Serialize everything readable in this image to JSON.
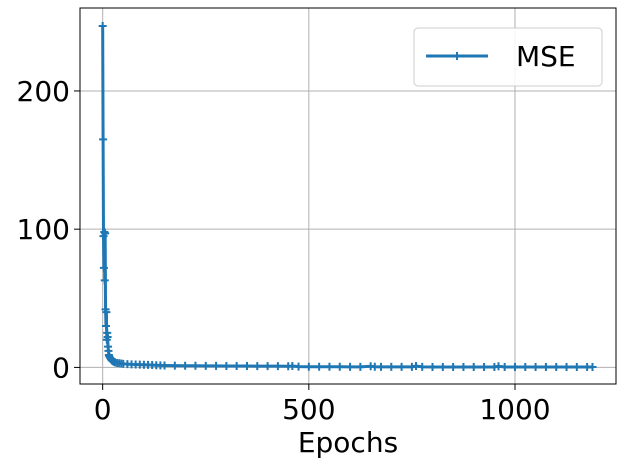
{
  "chart_data": {
    "type": "line",
    "title": "",
    "xlabel": "Epochs",
    "ylabel": "",
    "xlim": [
      -55,
      1245
    ],
    "ylim": [
      -12,
      260
    ],
    "xticks": [
      0,
      500,
      1000
    ],
    "yticks": [
      0,
      100,
      200
    ],
    "grid": true,
    "legend_position": "top-right",
    "series": [
      {
        "name": "MSE",
        "color": "#1f77b4",
        "marker": "plus",
        "x": [
          0,
          1,
          2,
          3,
          4,
          5,
          6,
          7,
          8,
          9,
          10,
          11,
          12,
          13,
          14,
          15,
          16,
          18,
          20,
          22,
          25,
          28,
          30,
          35,
          40,
          45,
          50,
          60,
          70,
          80,
          90,
          100,
          110,
          120,
          130,
          140,
          150,
          175,
          200,
          225,
          250,
          275,
          300,
          325,
          350,
          375,
          400,
          425,
          450,
          460,
          475,
          500,
          525,
          550,
          575,
          600,
          625,
          650,
          660,
          675,
          700,
          725,
          750,
          760,
          775,
          800,
          825,
          850,
          875,
          900,
          925,
          950,
          960,
          975,
          1000,
          1025,
          1050,
          1075,
          1100,
          1125,
          1150,
          1175,
          1188
        ],
        "y": [
          247,
          165,
          95,
          72,
          98,
          63,
          97,
          42,
          30,
          40,
          20,
          25,
          22,
          15,
          12,
          9,
          8,
          7,
          6,
          5,
          4.5,
          4,
          3.6,
          3.2,
          3,
          2.8,
          2.6,
          2.4,
          2.2,
          2.1,
          2,
          1.9,
          1.8,
          1.7,
          1.6,
          1.5,
          1.4,
          1.3,
          1.2,
          1.2,
          1.1,
          1.1,
          1.0,
          1.0,
          1.0,
          0.9,
          0.9,
          0.9,
          0.8,
          1.0,
          0.6,
          0.5,
          0.5,
          0.5,
          0.5,
          0.4,
          0.4,
          0.8,
          0.5,
          0.4,
          0.4,
          0.4,
          0.4,
          1.0,
          0.4,
          0.3,
          0.3,
          0.3,
          0.3,
          0.3,
          0.3,
          0.3,
          0.8,
          0.3,
          0.3,
          0.3,
          0.3,
          0.3,
          0.3,
          0.3,
          0.3,
          0.3,
          0.3
        ]
      }
    ]
  }
}
